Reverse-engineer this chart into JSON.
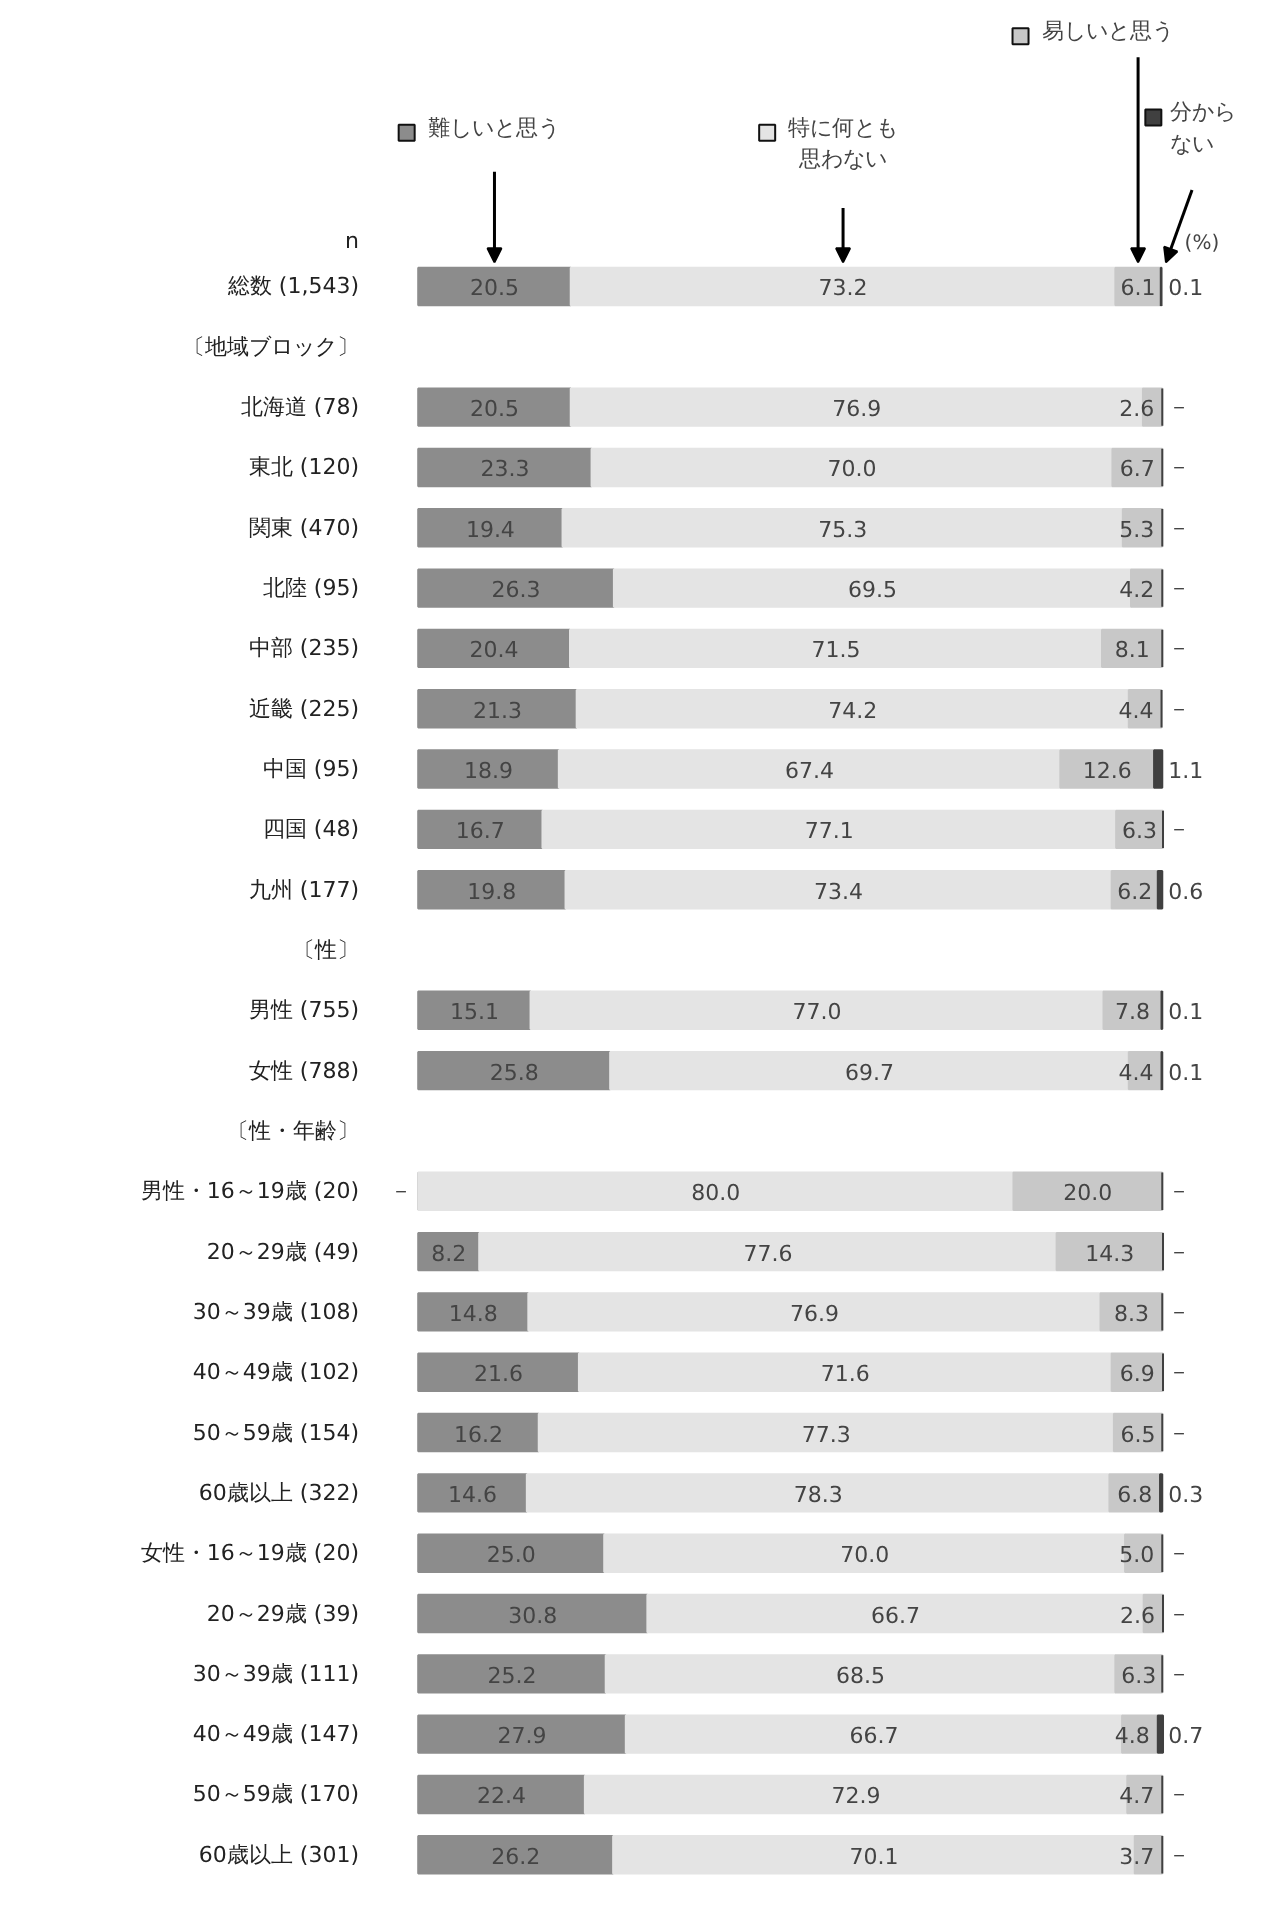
{
  "chart_data": {
    "type": "bar",
    "orientation": "horizontal",
    "stacked": true,
    "grid": false,
    "legend": "top",
    "tick_labels": "y",
    "categories": [
      "総数 (1,543)",
      "〔地域ブロック〕",
      "北海道 (78)",
      "東北 (120)",
      "関東 (470)",
      "北陸 (95)",
      "中部 (235)",
      "近畿 (225)",
      "中国 (95)",
      "四国 (48)",
      "九州 (177)",
      "〔性〕",
      "男性 (755)",
      "女性 (788)",
      "〔性・年齢〕",
      "男性・16～19歳 (20)",
      "20～29歳 (49)",
      "30～39歳 (108)",
      "40～49歳 (102)",
      "50～59歳 (154)",
      "60歳以上 (322)",
      "女性・16～19歳 (20)",
      "20～29歳 (39)",
      "30～39歳 (111)",
      "40～49歳 (147)",
      "50～59歳 (170)",
      "60歳以上 (301)"
    ],
    "series": [
      {
        "name": "難しいと思う",
        "color": "#8c8c8c",
        "values": [
          20.5,
          null,
          20.5,
          23.3,
          19.4,
          26.3,
          20.4,
          21.3,
          18.9,
          16.7,
          19.8,
          null,
          15.1,
          25.8,
          null,
          0,
          8.2,
          14.8,
          21.6,
          16.2,
          14.6,
          25.0,
          30.8,
          25.2,
          27.9,
          22.4,
          26.2
        ],
        "value_labels": [
          "20.5",
          null,
          "20.5",
          "23.3",
          "19.4",
          "26.3",
          "20.4",
          "21.3",
          "18.9",
          "16.7",
          "19.8",
          null,
          "15.1",
          "25.8",
          null,
          "－",
          "8.2",
          "14.8",
          "21.6",
          "16.2",
          "14.6",
          "25.0",
          "30.8",
          "25.2",
          "27.9",
          "22.4",
          "26.2"
        ]
      },
      {
        "name": "特に何とも思わない",
        "color": "#e4e4e4",
        "values": [
          73.2,
          null,
          76.9,
          70.0,
          75.3,
          69.5,
          71.5,
          74.2,
          67.4,
          77.1,
          73.4,
          null,
          77.0,
          69.7,
          null,
          80.0,
          77.6,
          76.9,
          71.6,
          77.3,
          78.3,
          70.0,
          66.7,
          68.5,
          66.7,
          72.9,
          70.1
        ],
        "value_labels": [
          "73.2",
          null,
          "76.9",
          "70.0",
          "75.3",
          "69.5",
          "71.5",
          "74.2",
          "67.4",
          "77.1",
          "73.4",
          null,
          "77.0",
          "69.7",
          null,
          "80.0",
          "77.6",
          "76.9",
          "71.6",
          "77.3",
          "78.3",
          "70.0",
          "66.7",
          "68.5",
          "66.7",
          "72.9",
          "70.1"
        ]
      },
      {
        "name": "易しいと思う",
        "color": "#c8c8c8",
        "values": [
          6.1,
          null,
          2.6,
          6.7,
          5.3,
          4.2,
          8.1,
          4.4,
          12.6,
          6.3,
          6.2,
          null,
          7.8,
          4.4,
          null,
          20.0,
          14.3,
          8.3,
          6.9,
          6.5,
          6.8,
          5.0,
          2.6,
          6.3,
          4.8,
          4.7,
          3.7
        ],
        "value_labels": [
          "6.1",
          null,
          "2.6",
          "6.7",
          "5.3",
          "4.2",
          "8.1",
          "4.4",
          "12.6",
          "6.3",
          "6.2",
          null,
          "7.8",
          "4.4",
          null,
          "20.0",
          "14.3",
          "8.3",
          "6.9",
          "6.5",
          "6.8",
          "5.0",
          "2.6",
          "6.3",
          "4.8",
          "4.7",
          "3.7"
        ]
      },
      {
        "name": "分からない",
        "color": "#404040",
        "values": [
          0.1,
          null,
          0,
          0,
          0,
          0,
          0,
          0,
          1.1,
          0,
          0.6,
          null,
          0.1,
          0.1,
          null,
          0,
          0,
          0,
          0,
          0,
          0.3,
          0,
          0,
          0,
          0.7,
          0,
          0
        ],
        "value_labels": [
          "0.1",
          null,
          "－",
          "－",
          "－",
          "－",
          "－",
          "－",
          "1.1",
          "－",
          "0.6",
          null,
          "0.1",
          "0.1",
          null,
          "－",
          "－",
          "－",
          "－",
          "－",
          "0.3",
          "－",
          "－",
          "－",
          "0.7",
          "－",
          "－"
        ]
      }
    ],
    "annotations": [
      "n",
      "(%)"
    ]
  }
}
